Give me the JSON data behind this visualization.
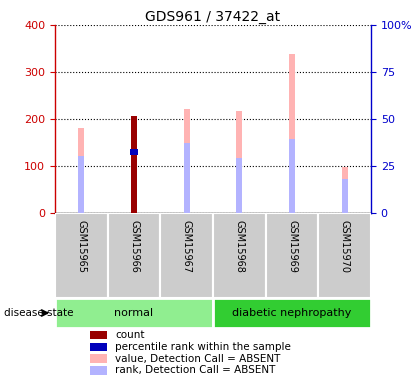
{
  "title": "GDS961 / 37422_at",
  "samples": [
    "GSM15965",
    "GSM15966",
    "GSM15967",
    "GSM15968",
    "GSM15969",
    "GSM15970"
  ],
  "value_absent": [
    180,
    207,
    222,
    218,
    338,
    97
  ],
  "rank_absent": [
    122,
    130,
    150,
    118,
    157,
    72
  ],
  "count_val": [
    0,
    207,
    0,
    0,
    0,
    0
  ],
  "percentile_val": [
    0,
    130,
    0,
    0,
    0,
    0
  ],
  "ylim_left": [
    0,
    400
  ],
  "ylim_right": [
    0,
    100
  ],
  "yticks_left": [
    0,
    100,
    200,
    300,
    400
  ],
  "yticks_right": [
    0,
    25,
    50,
    75,
    100
  ],
  "ytick_labels_left": [
    "0",
    "100",
    "200",
    "300",
    "400"
  ],
  "ytick_labels_right": [
    "0",
    "25",
    "50",
    "75",
    "100%"
  ],
  "color_value_absent": "#ffb3b3",
  "color_rank_absent": "#b3b3ff",
  "color_count": "#990000",
  "color_percentile": "#0000bb",
  "axis_left_color": "#cc0000",
  "axis_right_color": "#0000cc",
  "tick_bg_color": "#cccccc",
  "group_normal_color": "#90ee90",
  "group_diabetic_color": "#32cd32",
  "legend_items": [
    {
      "color": "#990000",
      "label": "count"
    },
    {
      "color": "#0000bb",
      "label": "percentile rank within the sample"
    },
    {
      "color": "#ffb3b3",
      "label": "value, Detection Call = ABSENT"
    },
    {
      "color": "#b3b3ff",
      "label": "rank, Detection Call = ABSENT"
    }
  ]
}
